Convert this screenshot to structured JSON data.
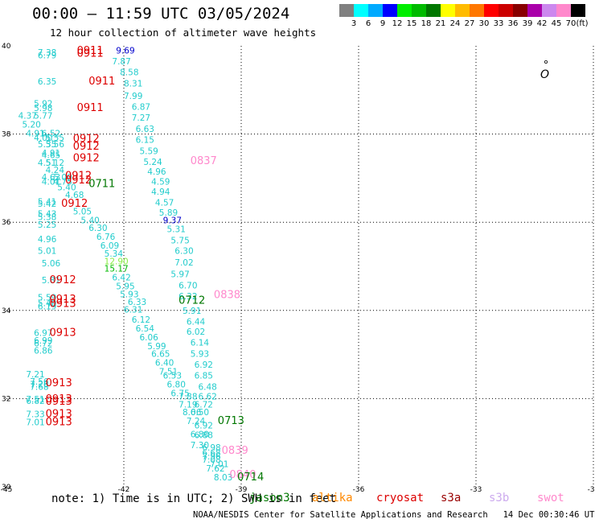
{
  "header": {
    "title": "00:00 – 11:59 UTC 03/05/2024",
    "subtitle": "12 hour collection of altimeter wave heights"
  },
  "scale": {
    "ticks": [
      "3",
      "6",
      "9",
      "12",
      "15",
      "18",
      "21",
      "24",
      "27",
      "30",
      "33",
      "36",
      "39",
      "42",
      "45",
      "70"
    ],
    "unit": "(ft)",
    "colors": [
      "#808080",
      "#00ffff",
      "#00aaff",
      "#0000ff",
      "#00ee00",
      "#00bb00",
      "#007700",
      "#ffff00",
      "#ffbb00",
      "#ff7700",
      "#ff0000",
      "#cc0000",
      "#880000",
      "#aa00aa",
      "#cc88ee",
      "#ff88cc",
      "#000000"
    ]
  },
  "map": {
    "lon_ticks": [
      "-45",
      "-42",
      "-39",
      "-36",
      "-33",
      "-30"
    ],
    "lat_ticks": [
      "40",
      "38",
      "36",
      "34",
      "32",
      "30"
    ],
    "land_mark": "O"
  },
  "chart_data": {
    "type": "scatter",
    "x_range": [
      -45,
      -30
    ],
    "y_range": [
      30,
      40
    ],
    "wave_heights": [
      {
        "lon": -44.2,
        "lat": 39.78,
        "v": "7.38",
        "c": "#22cccc"
      },
      {
        "lon": -44.2,
        "lat": 39.72,
        "v": "6.79",
        "c": "#22cccc"
      },
      {
        "lon": -42.2,
        "lat": 39.83,
        "v": "9.69",
        "c": "#0000cc"
      },
      {
        "lon": -42.3,
        "lat": 39.58,
        "v": "7.87",
        "c": "#22cccc"
      },
      {
        "lon": -42.1,
        "lat": 39.33,
        "v": "8.58",
        "c": "#22cccc"
      },
      {
        "lon": -42.0,
        "lat": 39.08,
        "v": "8.31",
        "c": "#22cccc"
      },
      {
        "lon": -44.2,
        "lat": 39.12,
        "v": "6.35",
        "c": "#22cccc"
      },
      {
        "lon": -42.0,
        "lat": 38.8,
        "v": "7.99",
        "c": "#22cccc"
      },
      {
        "lon": -44.3,
        "lat": 38.62,
        "v": "5.92",
        "c": "#22cccc"
      },
      {
        "lon": -44.3,
        "lat": 38.52,
        "v": "5.98",
        "c": "#22cccc"
      },
      {
        "lon": -41.8,
        "lat": 38.55,
        "v": "6.87",
        "c": "#22cccc"
      },
      {
        "lon": -44.7,
        "lat": 38.35,
        "v": "4.37",
        "c": "#22cccc"
      },
      {
        "lon": -44.3,
        "lat": 38.35,
        "v": "5.77",
        "c": "#22cccc"
      },
      {
        "lon": -41.8,
        "lat": 38.3,
        "v": "7.27",
        "c": "#22cccc"
      },
      {
        "lon": -44.6,
        "lat": 38.15,
        "v": "5.20",
        "c": "#22cccc"
      },
      {
        "lon": -41.7,
        "lat": 38.05,
        "v": "6.63",
        "c": "#22cccc"
      },
      {
        "lon": -44.5,
        "lat": 37.95,
        "v": "4.91",
        "c": "#22cccc"
      },
      {
        "lon": -44.1,
        "lat": 37.95,
        "v": "6.52",
        "c": "#22cccc"
      },
      {
        "lon": -44.3,
        "lat": 37.85,
        "v": "4.00",
        "c": "#22cccc"
      },
      {
        "lon": -44.0,
        "lat": 37.85,
        "v": "5.55",
        "c": "#22cccc"
      },
      {
        "lon": -41.7,
        "lat": 37.8,
        "v": "6.15",
        "c": "#22cccc"
      },
      {
        "lon": -44.2,
        "lat": 37.7,
        "v": "5.35",
        "c": "#22cccc"
      },
      {
        "lon": -44.0,
        "lat": 37.7,
        "v": "5.56",
        "c": "#22cccc"
      },
      {
        "lon": -41.6,
        "lat": 37.55,
        "v": "5.59",
        "c": "#22cccc"
      },
      {
        "lon": -44.1,
        "lat": 37.5,
        "v": "4.91",
        "c": "#22cccc"
      },
      {
        "lon": -44.1,
        "lat": 37.45,
        "v": "4.65",
        "c": "#22cccc"
      },
      {
        "lon": -41.5,
        "lat": 37.3,
        "v": "5.24",
        "c": "#22cccc"
      },
      {
        "lon": -44.2,
        "lat": 37.28,
        "v": "4.51",
        "c": "#22cccc"
      },
      {
        "lon": -44.0,
        "lat": 37.28,
        "v": "5.12",
        "c": "#22cccc"
      },
      {
        "lon": -44.0,
        "lat": 37.12,
        "v": "4.24",
        "c": "#22cccc"
      },
      {
        "lon": -41.4,
        "lat": 37.08,
        "v": "4.96",
        "c": "#22cccc"
      },
      {
        "lon": -44.1,
        "lat": 36.95,
        "v": "4.63",
        "c": "#22cccc"
      },
      {
        "lon": -43.8,
        "lat": 36.95,
        "v": "5.00",
        "c": "#22cccc"
      },
      {
        "lon": -44.1,
        "lat": 36.85,
        "v": "4.01",
        "c": "#22cccc"
      },
      {
        "lon": -43.8,
        "lat": 36.85,
        "v": "4.75",
        "c": "#22cccc"
      },
      {
        "lon": -41.3,
        "lat": 36.85,
        "v": "4.59",
        "c": "#22cccc"
      },
      {
        "lon": -43.7,
        "lat": 36.72,
        "v": "5.40",
        "c": "#22cccc"
      },
      {
        "lon": -41.3,
        "lat": 36.62,
        "v": "4.94",
        "c": "#22cccc"
      },
      {
        "lon": -43.5,
        "lat": 36.55,
        "v": "4.68",
        "c": "#22cccc"
      },
      {
        "lon": -44.2,
        "lat": 36.4,
        "v": "5.41",
        "c": "#22cccc"
      },
      {
        "lon": -44.2,
        "lat": 36.35,
        "v": "5.42",
        "c": "#22cccc"
      },
      {
        "lon": -41.2,
        "lat": 36.38,
        "v": "4.57",
        "c": "#22cccc"
      },
      {
        "lon": -43.3,
        "lat": 36.18,
        "v": "5.05",
        "c": "#22cccc"
      },
      {
        "lon": -44.2,
        "lat": 36.12,
        "v": "5.43",
        "c": "#22cccc"
      },
      {
        "lon": -41.1,
        "lat": 36.15,
        "v": "5.89",
        "c": "#22cccc"
      },
      {
        "lon": -44.2,
        "lat": 36.05,
        "v": "5.38",
        "c": "#22cccc"
      },
      {
        "lon": -43.1,
        "lat": 35.98,
        "v": "5.40",
        "c": "#22cccc"
      },
      {
        "lon": -41.0,
        "lat": 35.98,
        "v": "9.37",
        "c": "#0000cc"
      },
      {
        "lon": -44.2,
        "lat": 35.88,
        "v": "5.25",
        "c": "#22cccc"
      },
      {
        "lon": -42.9,
        "lat": 35.8,
        "v": "6.30",
        "c": "#22cccc"
      },
      {
        "lon": -40.9,
        "lat": 35.78,
        "v": "5.31",
        "c": "#22cccc"
      },
      {
        "lon": -42.7,
        "lat": 35.6,
        "v": "6.76",
        "c": "#22cccc"
      },
      {
        "lon": -44.2,
        "lat": 35.55,
        "v": "4.96",
        "c": "#22cccc"
      },
      {
        "lon": -40.8,
        "lat": 35.52,
        "v": "5.75",
        "c": "#22cccc"
      },
      {
        "lon": -42.6,
        "lat": 35.4,
        "v": "6.09",
        "c": "#22cccc"
      },
      {
        "lon": -44.2,
        "lat": 35.28,
        "v": "5.01",
        "c": "#22cccc"
      },
      {
        "lon": -40.7,
        "lat": 35.28,
        "v": "6.30",
        "c": "#22cccc"
      },
      {
        "lon": -42.5,
        "lat": 35.22,
        "v": "5.34",
        "c": "#22cccc"
      },
      {
        "lon": -42.5,
        "lat": 35.05,
        "v": "12.90",
        "c": "#88ee44"
      },
      {
        "lon": -44.1,
        "lat": 35.0,
        "v": "5.06",
        "c": "#22cccc"
      },
      {
        "lon": -40.7,
        "lat": 35.02,
        "v": "7.02",
        "c": "#22cccc"
      },
      {
        "lon": -42.5,
        "lat": 34.88,
        "v": "15.17",
        "c": "#00bb00"
      },
      {
        "lon": -40.8,
        "lat": 34.75,
        "v": "5.97",
        "c": "#22cccc"
      },
      {
        "lon": -42.3,
        "lat": 34.68,
        "v": "6.42",
        "c": "#22cccc"
      },
      {
        "lon": -44.1,
        "lat": 34.62,
        "v": "5.81",
        "c": "#22cccc"
      },
      {
        "lon": -42.2,
        "lat": 34.48,
        "v": "5.95",
        "c": "#22cccc"
      },
      {
        "lon": -40.6,
        "lat": 34.5,
        "v": "6.70",
        "c": "#22cccc"
      },
      {
        "lon": -42.1,
        "lat": 34.3,
        "v": "5.93",
        "c": "#22cccc"
      },
      {
        "lon": -40.6,
        "lat": 34.25,
        "v": "6.32",
        "c": "#22cccc"
      },
      {
        "lon": -44.2,
        "lat": 34.22,
        "v": "5.59",
        "c": "#22cccc"
      },
      {
        "lon": -41.9,
        "lat": 34.12,
        "v": "6.33",
        "c": "#22cccc"
      },
      {
        "lon": -44.2,
        "lat": 34.1,
        "v": "5.40",
        "c": "#22cccc"
      },
      {
        "lon": -44.2,
        "lat": 34.02,
        "v": "6.19",
        "c": "#22cccc"
      },
      {
        "lon": -42.0,
        "lat": 33.95,
        "v": "6.31",
        "c": "#22cccc"
      },
      {
        "lon": -40.5,
        "lat": 33.92,
        "v": "5.91",
        "c": "#22cccc"
      },
      {
        "lon": -41.8,
        "lat": 33.72,
        "v": "6.12",
        "c": "#22cccc"
      },
      {
        "lon": -40.4,
        "lat": 33.68,
        "v": "6.44",
        "c": "#22cccc"
      },
      {
        "lon": -41.7,
        "lat": 33.52,
        "v": "6.54",
        "c": "#22cccc"
      },
      {
        "lon": -44.3,
        "lat": 33.42,
        "v": "6.97",
        "c": "#22cccc"
      },
      {
        "lon": -40.4,
        "lat": 33.45,
        "v": "6.02",
        "c": "#22cccc"
      },
      {
        "lon": -41.6,
        "lat": 33.32,
        "v": "6.06",
        "c": "#22cccc"
      },
      {
        "lon": -44.3,
        "lat": 33.25,
        "v": "6.99",
        "c": "#22cccc"
      },
      {
        "lon": -44.3,
        "lat": 33.18,
        "v": "6.72",
        "c": "#22cccc"
      },
      {
        "lon": -40.3,
        "lat": 33.2,
        "v": "6.14",
        "c": "#22cccc"
      },
      {
        "lon": -41.4,
        "lat": 33.12,
        "v": "5.99",
        "c": "#22cccc"
      },
      {
        "lon": -44.3,
        "lat": 33.02,
        "v": "6.86",
        "c": "#22cccc"
      },
      {
        "lon": -41.3,
        "lat": 32.95,
        "v": "6.65",
        "c": "#22cccc"
      },
      {
        "lon": -40.3,
        "lat": 32.95,
        "v": "5.93",
        "c": "#22cccc"
      },
      {
        "lon": -41.2,
        "lat": 32.75,
        "v": "6.40",
        "c": "#22cccc"
      },
      {
        "lon": -40.2,
        "lat": 32.7,
        "v": "6.92",
        "c": "#22cccc"
      },
      {
        "lon": -41.1,
        "lat": 32.55,
        "v": "7.51",
        "c": "#22cccc"
      },
      {
        "lon": -44.5,
        "lat": 32.48,
        "v": "7.21",
        "c": "#22cccc"
      },
      {
        "lon": -41.0,
        "lat": 32.45,
        "v": "6.53",
        "c": "#22cccc"
      },
      {
        "lon": -40.2,
        "lat": 32.45,
        "v": "6.85",
        "c": "#22cccc"
      },
      {
        "lon": -44.4,
        "lat": 32.32,
        "v": "7.56",
        "c": "#22cccc"
      },
      {
        "lon": -44.4,
        "lat": 32.25,
        "v": "7.26",
        "c": "#22cccc"
      },
      {
        "lon": -44.4,
        "lat": 32.2,
        "v": "7.68",
        "c": "#22cccc"
      },
      {
        "lon": -40.9,
        "lat": 32.25,
        "v": "6.80",
        "c": "#22cccc"
      },
      {
        "lon": -40.1,
        "lat": 32.2,
        "v": "6.48",
        "c": "#22cccc"
      },
      {
        "lon": -40.8,
        "lat": 32.05,
        "v": "6.75",
        "c": "#22cccc"
      },
      {
        "lon": -44.5,
        "lat": 31.92,
        "v": "7.51",
        "c": "#22cccc"
      },
      {
        "lon": -44.5,
        "lat": 31.88,
        "v": "6.82",
        "c": "#22cccc"
      },
      {
        "lon": -40.6,
        "lat": 31.98,
        "v": "7.88",
        "c": "#22cccc"
      },
      {
        "lon": -40.1,
        "lat": 31.98,
        "v": "6.62",
        "c": "#22cccc"
      },
      {
        "lon": -40.6,
        "lat": 31.8,
        "v": "7.19",
        "c": "#22cccc"
      },
      {
        "lon": -40.2,
        "lat": 31.8,
        "v": "6.72",
        "c": "#22cccc"
      },
      {
        "lon": -44.5,
        "lat": 31.58,
        "v": "7.33",
        "c": "#22cccc"
      },
      {
        "lon": -40.5,
        "lat": 31.62,
        "v": "8.06",
        "c": "#22cccc"
      },
      {
        "lon": -40.3,
        "lat": 31.62,
        "v": "6.50",
        "c": "#22cccc"
      },
      {
        "lon": -44.5,
        "lat": 31.4,
        "v": "7.01",
        "c": "#22cccc"
      },
      {
        "lon": -40.4,
        "lat": 31.42,
        "v": "7.24",
        "c": "#22cccc"
      },
      {
        "lon": -40.2,
        "lat": 31.32,
        "v": "6.92",
        "c": "#22cccc"
      },
      {
        "lon": -40.3,
        "lat": 31.12,
        "v": "6.80",
        "c": "#22cccc"
      },
      {
        "lon": -40.2,
        "lat": 31.1,
        "v": "6.88",
        "c": "#22cccc"
      },
      {
        "lon": -40.3,
        "lat": 30.88,
        "v": "7.30",
        "c": "#22cccc"
      },
      {
        "lon": -40.0,
        "lat": 30.82,
        "v": "6.98",
        "c": "#22cccc"
      },
      {
        "lon": -40.0,
        "lat": 30.7,
        "v": "6.68",
        "c": "#22cccc"
      },
      {
        "lon": -40.0,
        "lat": 30.62,
        "v": "7.96",
        "c": "#22cccc"
      },
      {
        "lon": -40.0,
        "lat": 30.55,
        "v": "7.08",
        "c": "#22cccc"
      },
      {
        "lon": -39.8,
        "lat": 30.45,
        "v": "7.01",
        "c": "#22cccc"
      },
      {
        "lon": -39.9,
        "lat": 30.35,
        "v": "7.62",
        "c": "#22cccc"
      },
      {
        "lon": -39.7,
        "lat": 30.15,
        "v": "8.03",
        "c": "#22cccc"
      }
    ],
    "pass_times": [
      {
        "lon": -43.2,
        "lat": 39.82,
        "t": "0911",
        "c": "#dd0000"
      },
      {
        "lon": -43.2,
        "lat": 39.75,
        "t": "0911",
        "c": "#dd0000"
      },
      {
        "lon": -42.9,
        "lat": 39.12,
        "t": "0911",
        "c": "#dd0000"
      },
      {
        "lon": -43.2,
        "lat": 38.52,
        "t": "0911",
        "c": "#dd0000"
      },
      {
        "lon": -43.3,
        "lat": 37.82,
        "t": "0912",
        "c": "#dd0000"
      },
      {
        "lon": -43.3,
        "lat": 37.65,
        "t": "0912",
        "c": "#dd0000"
      },
      {
        "lon": -43.3,
        "lat": 37.38,
        "t": "0912",
        "c": "#dd0000"
      },
      {
        "lon": -40.3,
        "lat": 37.32,
        "t": "0837",
        "c": "#ff88cc"
      },
      {
        "lon": -43.5,
        "lat": 36.98,
        "t": "0912",
        "c": "#dd0000"
      },
      {
        "lon": -43.5,
        "lat": 36.88,
        "t": "0912",
        "c": "#dd0000"
      },
      {
        "lon": -42.9,
        "lat": 36.8,
        "t": "0711",
        "c": "#007700"
      },
      {
        "lon": -43.6,
        "lat": 36.35,
        "t": "0912",
        "c": "#dd0000"
      },
      {
        "lon": -43.9,
        "lat": 34.62,
        "t": "0912",
        "c": "#dd0000"
      },
      {
        "lon": -43.9,
        "lat": 34.18,
        "t": "0913",
        "c": "#dd0000"
      },
      {
        "lon": -43.9,
        "lat": 34.08,
        "t": "0913",
        "c": "#dd0000"
      },
      {
        "lon": -40.6,
        "lat": 34.15,
        "t": "0712",
        "c": "#007700"
      },
      {
        "lon": -39.7,
        "lat": 34.28,
        "t": "0838",
        "c": "#ff88cc"
      },
      {
        "lon": -43.9,
        "lat": 33.42,
        "t": "0913",
        "c": "#dd0000"
      },
      {
        "lon": -44.0,
        "lat": 32.28,
        "t": "0913",
        "c": "#dd0000"
      },
      {
        "lon": -44.0,
        "lat": 31.92,
        "t": "0913",
        "c": "#dd0000"
      },
      {
        "lon": -44.0,
        "lat": 31.86,
        "t": "0913",
        "c": "#dd0000"
      },
      {
        "lon": -44.0,
        "lat": 31.58,
        "t": "0913",
        "c": "#dd0000"
      },
      {
        "lon": -44.0,
        "lat": 31.4,
        "t": "0913",
        "c": "#dd0000"
      },
      {
        "lon": -39.6,
        "lat": 31.42,
        "t": "0713",
        "c": "#007700"
      },
      {
        "lon": -39.5,
        "lat": 30.75,
        "t": "0839",
        "c": "#ff88cc"
      },
      {
        "lon": -39.3,
        "lat": 30.2,
        "t": "0840",
        "c": "#ff88cc"
      },
      {
        "lon": -39.1,
        "lat": 30.15,
        "t": "0714",
        "c": "#007700"
      }
    ]
  },
  "footer": {
    "note": "note: 1) Time is in UTC; 2) SWH is in feet",
    "missions": [
      {
        "label": "jason3",
        "color": "#007700"
      },
      {
        "label": "altika",
        "color": "#ff8800"
      },
      {
        "label": "cryosat",
        "color": "#dd0000"
      },
      {
        "label": "s3a",
        "color": "#990000"
      },
      {
        "label": "s3b",
        "color": "#ccaaee"
      },
      {
        "label": "swot",
        "color": "#ff88cc"
      }
    ],
    "credit": "NOAA/NESDIS Center for Satellite Applications and Research   14 Dec 00:30:46 UTC 2024"
  }
}
